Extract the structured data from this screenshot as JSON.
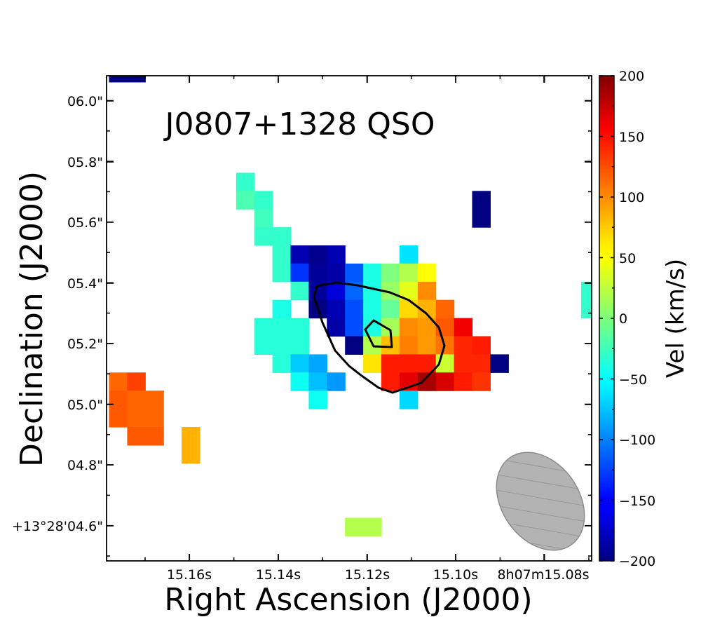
{
  "chart_data": {
    "type": "heatmap",
    "title": "J0807+1328 QSO",
    "xlabel": "Right Ascension (J2000)",
    "ylabel": "Declination (J2000)",
    "colorbar_label": "Vel (km/s)",
    "colormap": "jet",
    "vmin": -200,
    "vmax": 200,
    "x_tick_labels": [
      "15.16s",
      "15.14s",
      "15.12s",
      "15.10s",
      "8h07m15.08s"
    ],
    "y_tick_labels": [
      "+13°28'04.6\"",
      "04.8\"",
      "05.0\"",
      "05.2\"",
      "05.4\"",
      "05.6\"",
      "05.8\"",
      "06.0\""
    ],
    "colorbar_ticks": [
      "200",
      "150",
      "100",
      "50",
      "0",
      "−50",
      "−100",
      "−150",
      "−200"
    ],
    "colorbar_values": [
      200,
      150,
      100,
      50,
      0,
      -50,
      -100,
      -150,
      -200
    ],
    "grid_cols": 27,
    "grid_rows": 27,
    "pixels": [
      {
        "c": 0,
        "r": 0,
        "v": -200
      },
      {
        "c": 1,
        "r": 0,
        "v": -200
      },
      {
        "c": 7,
        "r": 6,
        "v": -30
      },
      {
        "c": 7,
        "r": 7,
        "v": -20
      },
      {
        "c": 8,
        "r": 7,
        "v": -30
      },
      {
        "c": 8,
        "r": 8,
        "v": -25
      },
      {
        "c": 8,
        "r": 9,
        "v": -30
      },
      {
        "c": 9,
        "r": 9,
        "v": -30
      },
      {
        "c": 9,
        "r": 10,
        "v": -30
      },
      {
        "c": 10,
        "r": 10,
        "v": -180
      },
      {
        "c": 11,
        "r": 10,
        "v": -195
      },
      {
        "c": 12,
        "r": 10,
        "v": -180
      },
      {
        "c": 16,
        "r": 10,
        "v": -60
      },
      {
        "c": 9,
        "r": 11,
        "v": -30
      },
      {
        "c": 10,
        "r": 11,
        "v": -130
      },
      {
        "c": 11,
        "r": 11,
        "v": -190
      },
      {
        "c": 12,
        "r": 11,
        "v": -185
      },
      {
        "c": 13,
        "r": 11,
        "v": -115
      },
      {
        "c": 14,
        "r": 11,
        "v": -40
      },
      {
        "c": 15,
        "r": 11,
        "v": 0
      },
      {
        "c": 16,
        "r": 11,
        "v": 20
      },
      {
        "c": 17,
        "r": 11,
        "v": 50
      },
      {
        "c": 10,
        "r": 12,
        "v": -30
      },
      {
        "c": 11,
        "r": 12,
        "v": -190
      },
      {
        "c": 12,
        "r": 12,
        "v": -165
      },
      {
        "c": 13,
        "r": 12,
        "v": -110
      },
      {
        "c": 14,
        "r": 12,
        "v": -40
      },
      {
        "c": 15,
        "r": 12,
        "v": 10
      },
      {
        "c": 16,
        "r": 12,
        "v": 40
      },
      {
        "c": 17,
        "r": 12,
        "v": 95
      },
      {
        "c": 9,
        "r": 13,
        "v": -40
      },
      {
        "c": 11,
        "r": 13,
        "v": -200
      },
      {
        "c": 12,
        "r": 13,
        "v": -180
      },
      {
        "c": 13,
        "r": 13,
        "v": -120
      },
      {
        "c": 14,
        "r": 13,
        "v": -40
      },
      {
        "c": 15,
        "r": 13,
        "v": -10
      },
      {
        "c": 16,
        "r": 13,
        "v": 65
      },
      {
        "c": 17,
        "r": 13,
        "v": 80
      },
      {
        "c": 18,
        "r": 13,
        "v": 110
      },
      {
        "c": 8,
        "r": 14,
        "v": -35
      },
      {
        "c": 9,
        "r": 14,
        "v": -35
      },
      {
        "c": 10,
        "r": 14,
        "v": -35
      },
      {
        "c": 12,
        "r": 14,
        "v": -185
      },
      {
        "c": 13,
        "r": 14,
        "v": -120
      },
      {
        "c": 14,
        "r": 14,
        "v": -40
      },
      {
        "c": 15,
        "r": 14,
        "v": 15
      },
      {
        "c": 16,
        "r": 14,
        "v": 95
      },
      {
        "c": 17,
        "r": 14,
        "v": 90
      },
      {
        "c": 18,
        "r": 14,
        "v": 115
      },
      {
        "c": 19,
        "r": 14,
        "v": 155
      },
      {
        "c": 8,
        "r": 15,
        "v": -35
      },
      {
        "c": 9,
        "r": 15,
        "v": -35
      },
      {
        "c": 10,
        "r": 15,
        "v": -35
      },
      {
        "c": 13,
        "r": 15,
        "v": -200
      },
      {
        "c": 14,
        "r": 15,
        "v": 20
      },
      {
        "c": 15,
        "r": 15,
        "v": 75
      },
      {
        "c": 16,
        "r": 15,
        "v": 100
      },
      {
        "c": 17,
        "r": 15,
        "v": 90
      },
      {
        "c": 18,
        "r": 15,
        "v": 105
      },
      {
        "c": 19,
        "r": 15,
        "v": 135
      },
      {
        "c": 20,
        "r": 15,
        "v": 140
      },
      {
        "c": 9,
        "r": 16,
        "v": -35
      },
      {
        "c": 10,
        "r": 16,
        "v": -70
      },
      {
        "c": 11,
        "r": 16,
        "v": -85
      },
      {
        "c": 14,
        "r": 16,
        "v": 60
      },
      {
        "c": 15,
        "r": 16,
        "v": 140
      },
      {
        "c": 16,
        "r": 16,
        "v": 140
      },
      {
        "c": 17,
        "r": 16,
        "v": 140
      },
      {
        "c": 18,
        "r": 16,
        "v": 30
      },
      {
        "c": 19,
        "r": 16,
        "v": 135
      },
      {
        "c": 20,
        "r": 16,
        "v": 135
      },
      {
        "c": 21,
        "r": 16,
        "v": -200
      },
      {
        "c": 10,
        "r": 17,
        "v": -45
      },
      {
        "c": 11,
        "r": 17,
        "v": -75
      },
      {
        "c": 12,
        "r": 17,
        "v": -90
      },
      {
        "c": 15,
        "r": 17,
        "v": 140
      },
      {
        "c": 16,
        "r": 17,
        "v": 160
      },
      {
        "c": 17,
        "r": 17,
        "v": 185
      },
      {
        "c": 18,
        "r": 17,
        "v": 165
      },
      {
        "c": 19,
        "r": 17,
        "v": 140
      },
      {
        "c": 20,
        "r": 17,
        "v": 130
      },
      {
        "c": 11,
        "r": 18,
        "v": -45
      },
      {
        "c": 16,
        "r": 18,
        "v": -65
      },
      {
        "c": 0,
        "r": 17,
        "v": 110
      },
      {
        "c": 1,
        "r": 17,
        "v": 125
      },
      {
        "c": 0,
        "r": 18,
        "v": 115
      },
      {
        "c": 1,
        "r": 18,
        "v": 110
      },
      {
        "c": 2,
        "r": 18,
        "v": 110
      },
      {
        "c": 0,
        "r": 19,
        "v": 115
      },
      {
        "c": 1,
        "r": 19,
        "v": 110
      },
      {
        "c": 2,
        "r": 19,
        "v": 110
      },
      {
        "c": 1,
        "r": 20,
        "v": 115
      },
      {
        "c": 2,
        "r": 20,
        "v": 115
      },
      {
        "c": 4,
        "r": 20,
        "v": 80
      },
      {
        "c": 4,
        "r": 21,
        "v": 80
      },
      {
        "c": 13,
        "r": 25,
        "v": 20
      },
      {
        "c": 14,
        "r": 25,
        "v": 20
      },
      {
        "c": 20,
        "r": 7,
        "v": -200
      },
      {
        "c": 20,
        "r": 8,
        "v": -200
      },
      {
        "c": 26,
        "r": 12,
        "v": -30
      },
      {
        "c": 26,
        "r": 13,
        "v": -30
      }
    ]
  }
}
